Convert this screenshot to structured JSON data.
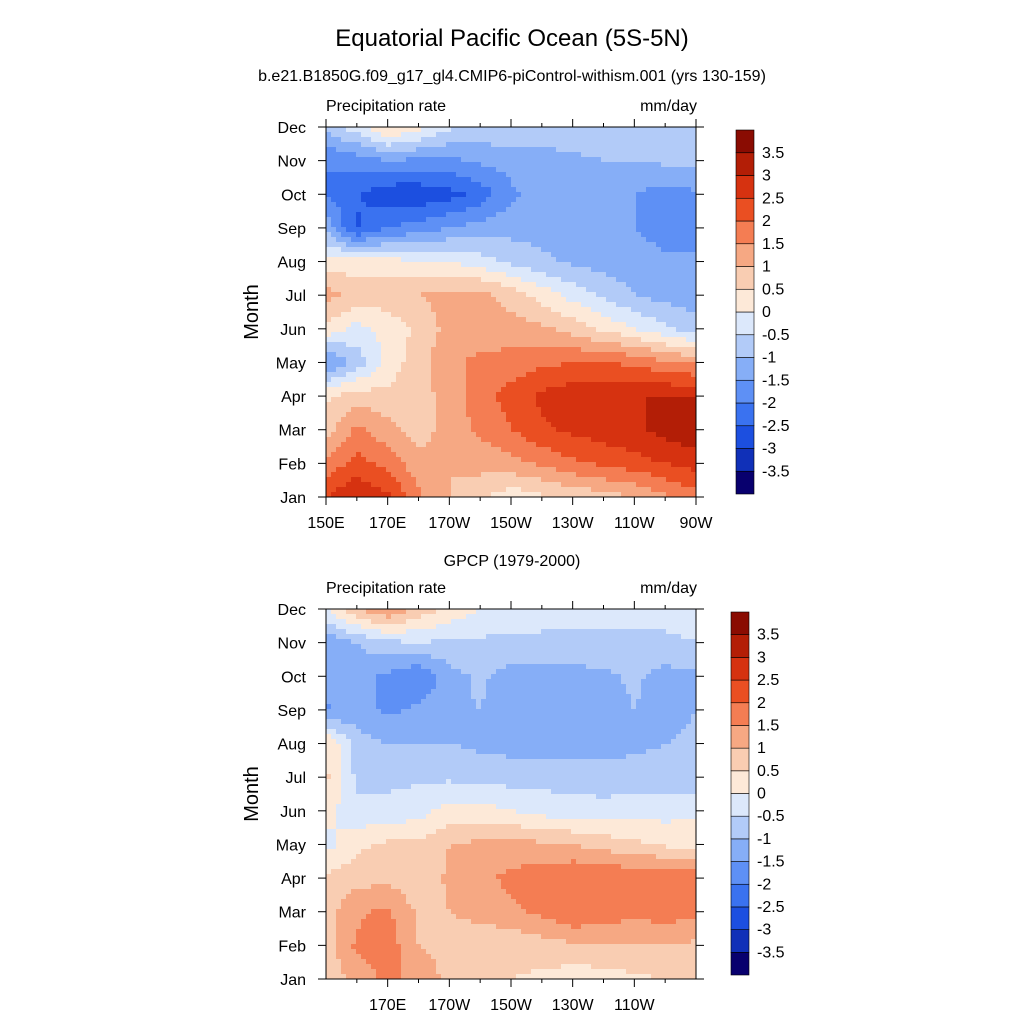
{
  "figure": {
    "title": "Equatorial Pacific Ocean (5S-5N)",
    "subtitle": "b.e21.B1850G.f09_g17_gl4.CMIP6-piControl-withism.001 (yrs 130-159)"
  },
  "chart_data": [
    {
      "type": "heatmap",
      "title": "",
      "left_label": "Precipitation rate",
      "right_label": "mm/day",
      "ylabel": "Month",
      "xlim": [
        150,
        270
      ],
      "x_ticks": [
        150,
        170,
        190,
        210,
        230,
        250,
        270
      ],
      "x_tick_labels": [
        "150E",
        "170E",
        "170W",
        "150W",
        "130W",
        "110W",
        "90W"
      ],
      "x_minor_ticks": [
        160,
        180,
        200,
        220,
        240,
        260
      ],
      "months": [
        "Jan",
        "Feb",
        "Mar",
        "Apr",
        "May",
        "Jun",
        "Jul",
        "Aug",
        "Sep",
        "Oct",
        "Nov",
        "Dec"
      ],
      "z_units": "mm/day",
      "z_estimated_grid": {
        "lon": [
          150,
          160,
          170,
          180,
          190,
          200,
          210,
          220,
          230,
          240,
          250,
          260,
          270
        ],
        "month_values_by_lon": [
          [
            2.5,
            3.0,
            2.6,
            1.6,
            1.0,
            0.6,
            0.2,
            0.4,
            0.6,
            0.8,
            1.0,
            1.4,
            1.8
          ],
          [
            1.6,
            2.2,
            1.8,
            1.2,
            1.0,
            1.2,
            1.3,
            1.6,
            1.9,
            2.1,
            2.3,
            2.5,
            2.7
          ],
          [
            0.8,
            1.6,
            1.2,
            0.8,
            1.2,
            1.6,
            2.0,
            2.4,
            2.6,
            2.8,
            2.9,
            3.2,
            3.4
          ],
          [
            0.4,
            0.8,
            0.6,
            0.8,
            1.2,
            1.8,
            2.2,
            2.6,
            2.8,
            2.9,
            3.0,
            3.0,
            3.0
          ],
          [
            -1.6,
            -0.8,
            0.2,
            0.8,
            1.4,
            1.6,
            1.7,
            1.9,
            2.0,
            2.0,
            1.9,
            1.6,
            1.4
          ],
          [
            0.4,
            -0.2,
            0.2,
            0.6,
            1.2,
            1.3,
            1.2,
            1.1,
            0.8,
            0.4,
            0.0,
            -0.4,
            -0.8
          ],
          [
            1.2,
            0.8,
            0.8,
            1.0,
            1.2,
            1.2,
            0.8,
            0.3,
            -0.2,
            -0.6,
            -1.0,
            -1.2,
            -1.3
          ],
          [
            0.3,
            0.2,
            0.2,
            0.0,
            0.0,
            -0.3,
            -0.6,
            -0.9,
            -1.1,
            -1.2,
            -1.3,
            -1.4,
            -1.4
          ],
          [
            -1.2,
            -2.6,
            -2.0,
            -1.8,
            -1.5,
            -1.3,
            -1.2,
            -1.2,
            -1.2,
            -1.3,
            -1.5,
            -1.7,
            -1.7
          ],
          [
            -2.0,
            -2.4,
            -2.9,
            -2.9,
            -2.7,
            -2.3,
            -1.6,
            -1.2,
            -1.2,
            -1.3,
            -1.5,
            -1.7,
            -1.6
          ],
          [
            -2.0,
            -1.8,
            -1.5,
            -1.6,
            -1.6,
            -1.4,
            -1.3,
            -1.2,
            -1.1,
            -1.0,
            -1.0,
            -0.9,
            -0.8
          ],
          [
            -0.8,
            -0.2,
            0.6,
            0.2,
            -0.4,
            -0.6,
            -0.6,
            -0.7,
            -0.7,
            -0.7,
            -0.7,
            -0.6,
            -0.6
          ]
        ]
      },
      "colorbar": {
        "levels": [
          -3.5,
          -3,
          -2.5,
          -2,
          -1.5,
          -1,
          -0.5,
          0,
          0.5,
          1,
          1.5,
          2,
          2.5,
          3,
          3.5
        ],
        "labels": [
          "-3.5",
          "-3",
          "-2.5",
          "-2",
          "-1.5",
          "-1",
          "-0.5",
          "0",
          "0.5",
          "1",
          "1.5",
          "2",
          "2.5",
          "3",
          "3.5"
        ]
      }
    },
    {
      "type": "heatmap",
      "title": "GPCP (1979-2000)",
      "left_label": "Precipitation rate",
      "right_label": "mm/day",
      "ylabel": "Month",
      "xlim": [
        150,
        270
      ],
      "x_ticks": [
        170,
        190,
        210,
        230,
        250
      ],
      "x_tick_labels": [
        "170E",
        "170W",
        "150W",
        "130W",
        "110W"
      ],
      "x_minor_ticks": [
        160,
        180,
        200,
        220,
        240,
        260
      ],
      "months": [
        "Jan",
        "Feb",
        "Mar",
        "Apr",
        "May",
        "Jun",
        "Jul",
        "Aug",
        "Sep",
        "Oct",
        "Nov",
        "Dec"
      ],
      "z_units": "mm/day",
      "z_estimated_grid": {
        "lon": [
          150,
          160,
          170,
          180,
          190,
          200,
          210,
          220,
          230,
          240,
          250,
          260,
          270
        ],
        "month_values_by_lon": [
          [
            0.6,
            1.2,
            1.6,
            1.4,
            0.8,
            0.6,
            0.5,
            0.4,
            0.2,
            0.3,
            0.4,
            0.5,
            0.5
          ],
          [
            0.8,
            1.6,
            1.8,
            1.0,
            0.8,
            0.6,
            0.6,
            0.8,
            0.9,
            0.9,
            1.0,
            1.0,
            0.9
          ],
          [
            0.8,
            1.4,
            1.6,
            0.9,
            1.0,
            1.2,
            1.4,
            1.6,
            2.0,
            1.9,
            1.6,
            1.8,
            1.6
          ],
          [
            0.6,
            0.8,
            0.9,
            0.6,
            1.1,
            1.4,
            1.6,
            1.8,
            2.0,
            2.0,
            1.9,
            2.0,
            1.8
          ],
          [
            -0.2,
            0.4,
            0.6,
            0.6,
            1.0,
            1.1,
            1.2,
            1.1,
            1.0,
            0.8,
            0.6,
            0.4,
            0.3
          ],
          [
            0.2,
            -0.4,
            -0.4,
            -0.2,
            0.2,
            0.2,
            0.0,
            -0.2,
            -0.3,
            -0.3,
            -0.2,
            -0.2,
            -0.1
          ],
          [
            0.6,
            -0.6,
            -0.6,
            -0.6,
            -0.6,
            -0.7,
            -0.7,
            -0.7,
            -0.7,
            -0.8,
            -0.8,
            -0.8,
            -0.8
          ],
          [
            0.6,
            -0.8,
            -1.0,
            -1.0,
            -1.0,
            -1.1,
            -1.2,
            -1.2,
            -1.3,
            -1.2,
            -1.1,
            -1.0,
            -0.9
          ],
          [
            -1.6,
            -1.3,
            -1.6,
            -1.4,
            -1.1,
            -1.0,
            -1.4,
            -1.5,
            -1.4,
            -1.3,
            -1.0,
            -1.2,
            -1.0
          ],
          [
            -1.2,
            -1.3,
            -1.6,
            -2.0,
            -1.2,
            -0.9,
            -1.2,
            -1.3,
            -1.2,
            -1.1,
            -0.9,
            -1.2,
            -1.1
          ],
          [
            -1.4,
            -1.0,
            -0.6,
            -0.5,
            -0.6,
            -0.6,
            -0.6,
            -0.6,
            -0.6,
            -0.6,
            -0.6,
            -0.6,
            -0.5
          ],
          [
            0.0,
            1.0,
            1.5,
            0.8,
            0.4,
            0.0,
            -0.2,
            -0.3,
            -0.3,
            -0.3,
            -0.3,
            -0.3,
            -0.3
          ]
        ]
      },
      "colorbar": {
        "levels": [
          -3.5,
          -3,
          -2.5,
          -2,
          -1.5,
          -1,
          -0.5,
          0,
          0.5,
          1,
          1.5,
          2,
          2.5,
          3,
          3.5
        ],
        "labels": [
          "-3.5",
          "-3",
          "-2.5",
          "-2",
          "-1.5",
          "-1",
          "-0.5",
          "0",
          "0.5",
          "1",
          "1.5",
          "2",
          "2.5",
          "3",
          "3.5"
        ]
      }
    }
  ],
  "colors": {
    "palette": [
      "#08006e",
      "#1030b8",
      "#1c4fe0",
      "#3a72f0",
      "#5e90f5",
      "#86aef7",
      "#b2cbf8",
      "#dce8fb",
      "#fde9d8",
      "#f9cdb2",
      "#f6a883",
      "#f47d53",
      "#ea4f22",
      "#d63210",
      "#b31e06",
      "#8a0c02"
    ]
  }
}
